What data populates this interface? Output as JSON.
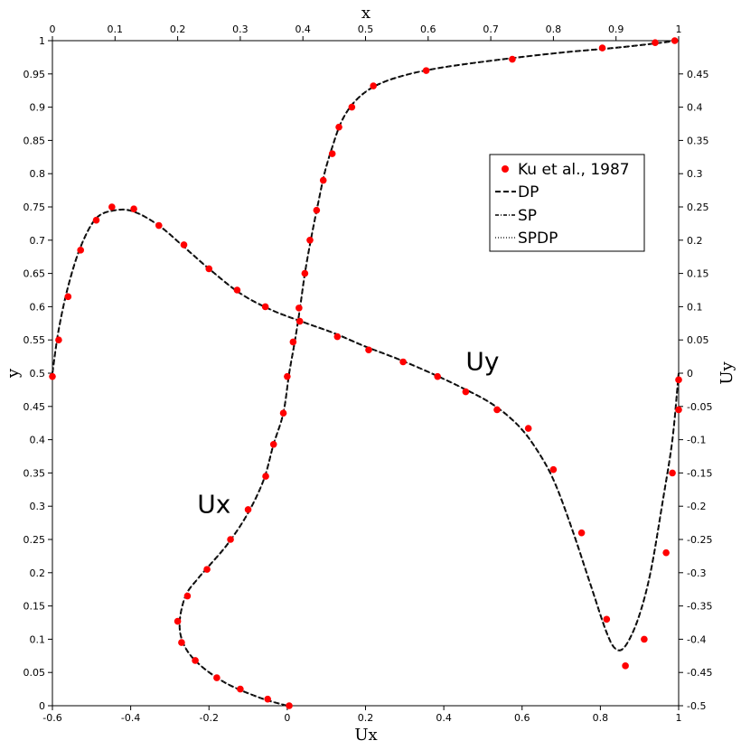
{
  "chart_data": {
    "type": "line",
    "axes": {
      "bottom": {
        "label": "Ux",
        "range": [
          -0.6,
          1.0
        ],
        "ticks": [
          "-0.6",
          "-0.4",
          "-0.2",
          "0",
          "0.2",
          "0.4",
          "0.6",
          "0.8",
          "1"
        ]
      },
      "left": {
        "label": "y",
        "range": [
          0,
          1
        ],
        "ticks": [
          "0",
          "0.05",
          "0.1",
          "0.15",
          "0.2",
          "0.25",
          "0.3",
          "0.35",
          "0.4",
          "0.45",
          "0.5",
          "0.55",
          "0.6",
          "0.65",
          "0.7",
          "0.75",
          "0.8",
          "0.85",
          "0.9",
          "0.95",
          "1"
        ]
      },
      "top": {
        "label": "x",
        "range": [
          0,
          1
        ],
        "ticks": [
          "0",
          "0.1",
          "0.2",
          "0.3",
          "0.4",
          "0.5",
          "0.6",
          "0.7",
          "0.8",
          "0.9",
          "1"
        ]
      },
      "right": {
        "label": "Uy",
        "range": [
          -0.5,
          0.5
        ],
        "ticks": [
          "-0.5",
          "-0.45",
          "-0.4",
          "-0.35",
          "-0.3",
          "-0.25",
          "-0.2",
          "-0.15",
          "-0.1",
          "-0.05",
          "0",
          "0.05",
          "0.1",
          "0.15",
          "0.2",
          "0.25",
          "0.3",
          "0.35",
          "0.4",
          "0.45"
        ]
      }
    },
    "annotations": [
      {
        "text": "Ux",
        "x": -0.23,
        "y": 0.29,
        "axes": "bottom-left"
      },
      {
        "text": "Uy",
        "x": 0.66,
        "y": 0.005,
        "axes": "top-right"
      }
    ],
    "legend": {
      "placement": "upper-right",
      "entries": [
        {
          "name": "Ku et al., 1987",
          "style": "red-dot"
        },
        {
          "name": "DP",
          "style": "dashed"
        },
        {
          "name": "SP",
          "style": "dash-dot"
        },
        {
          "name": "SPDP",
          "style": "dotted"
        }
      ]
    },
    "grid": false,
    "series": [
      {
        "name": "Ux",
        "axes": "bottom-left",
        "reference_points": [
          {
            "x": 0.005,
            "y": 0.0
          },
          {
            "x": -0.05,
            "y": 0.01
          },
          {
            "x": -0.12,
            "y": 0.025
          },
          {
            "x": -0.18,
            "y": 0.042
          },
          {
            "x": -0.235,
            "y": 0.068
          },
          {
            "x": -0.27,
            "y": 0.095
          },
          {
            "x": -0.28,
            "y": 0.127
          },
          {
            "x": -0.255,
            "y": 0.165
          },
          {
            "x": -0.205,
            "y": 0.205
          },
          {
            "x": -0.145,
            "y": 0.25
          },
          {
            "x": -0.1,
            "y": 0.295
          },
          {
            "x": -0.055,
            "y": 0.345
          },
          {
            "x": -0.035,
            "y": 0.393
          },
          {
            "x": -0.01,
            "y": 0.44
          },
          {
            "x": 0.0,
            "y": 0.495
          },
          {
            "x": 0.015,
            "y": 0.547
          },
          {
            "x": 0.03,
            "y": 0.598
          },
          {
            "x": 0.045,
            "y": 0.65
          },
          {
            "x": 0.058,
            "y": 0.7
          },
          {
            "x": 0.075,
            "y": 0.745
          },
          {
            "x": 0.092,
            "y": 0.79
          },
          {
            "x": 0.115,
            "y": 0.83
          },
          {
            "x": 0.132,
            "y": 0.87
          },
          {
            "x": 0.165,
            "y": 0.9
          },
          {
            "x": 0.22,
            "y": 0.932
          },
          {
            "x": 0.355,
            "y": 0.955
          },
          {
            "x": 0.575,
            "y": 0.972
          },
          {
            "x": 0.805,
            "y": 0.989
          },
          {
            "x": 0.94,
            "y": 0.997
          },
          {
            "x": 0.99,
            "y": 1.0
          }
        ],
        "curve": [
          {
            "x": 0.0,
            "y": 0.0
          },
          {
            "x": -0.07,
            "y": 0.012
          },
          {
            "x": -0.16,
            "y": 0.035
          },
          {
            "x": -0.23,
            "y": 0.065
          },
          {
            "x": -0.265,
            "y": 0.093
          },
          {
            "x": -0.275,
            "y": 0.125
          },
          {
            "x": -0.26,
            "y": 0.165
          },
          {
            "x": -0.23,
            "y": 0.19
          },
          {
            "x": -0.2,
            "y": 0.21
          },
          {
            "x": -0.15,
            "y": 0.245
          },
          {
            "x": -0.1,
            "y": 0.29
          },
          {
            "x": -0.06,
            "y": 0.34
          },
          {
            "x": -0.035,
            "y": 0.393
          },
          {
            "x": -0.01,
            "y": 0.44
          },
          {
            "x": 0.005,
            "y": 0.5
          },
          {
            "x": 0.02,
            "y": 0.55
          },
          {
            "x": 0.033,
            "y": 0.6
          },
          {
            "x": 0.045,
            "y": 0.65
          },
          {
            "x": 0.06,
            "y": 0.7
          },
          {
            "x": 0.077,
            "y": 0.75
          },
          {
            "x": 0.095,
            "y": 0.8
          },
          {
            "x": 0.115,
            "y": 0.84
          },
          {
            "x": 0.14,
            "y": 0.88
          },
          {
            "x": 0.175,
            "y": 0.91
          },
          {
            "x": 0.225,
            "y": 0.932
          },
          {
            "x": 0.3,
            "y": 0.948
          },
          {
            "x": 0.4,
            "y": 0.96
          },
          {
            "x": 0.55,
            "y": 0.972
          },
          {
            "x": 0.7,
            "y": 0.982
          },
          {
            "x": 0.85,
            "y": 0.99
          },
          {
            "x": 1.0,
            "y": 1.0
          }
        ]
      },
      {
        "name": "Uy",
        "axes": "top-right",
        "reference_points": [
          {
            "x": 0.0,
            "y": -0.005
          },
          {
            "x": 0.01,
            "y": 0.05
          },
          {
            "x": 0.025,
            "y": 0.115
          },
          {
            "x": 0.045,
            "y": 0.185
          },
          {
            "x": 0.07,
            "y": 0.23
          },
          {
            "x": 0.095,
            "y": 0.25
          },
          {
            "x": 0.13,
            "y": 0.247
          },
          {
            "x": 0.17,
            "y": 0.222
          },
          {
            "x": 0.21,
            "y": 0.193
          },
          {
            "x": 0.25,
            "y": 0.157
          },
          {
            "x": 0.295,
            "y": 0.125
          },
          {
            "x": 0.34,
            "y": 0.1
          },
          {
            "x": 0.395,
            "y": 0.078
          },
          {
            "x": 0.455,
            "y": 0.055
          },
          {
            "x": 0.505,
            "y": 0.035
          },
          {
            "x": 0.56,
            "y": 0.017
          },
          {
            "x": 0.615,
            "y": -0.005
          },
          {
            "x": 0.66,
            "y": -0.028
          },
          {
            "x": 0.71,
            "y": -0.055
          },
          {
            "x": 0.76,
            "y": -0.083
          },
          {
            "x": 0.8,
            "y": -0.145
          },
          {
            "x": 0.845,
            "y": -0.24
          },
          {
            "x": 0.885,
            "y": -0.37
          },
          {
            "x": 0.915,
            "y": -0.44
          },
          {
            "x": 0.945,
            "y": -0.4
          },
          {
            "x": 0.98,
            "y": -0.27
          },
          {
            "x": 0.99,
            "y": -0.15
          },
          {
            "x": 1.0,
            "y": -0.055
          },
          {
            "x": 1.0,
            "y": -0.01
          }
        ],
        "curve": [
          {
            "x": 0.0,
            "y": 0.0
          },
          {
            "x": 0.01,
            "y": 0.065
          },
          {
            "x": 0.025,
            "y": 0.13
          },
          {
            "x": 0.045,
            "y": 0.19
          },
          {
            "x": 0.07,
            "y": 0.233
          },
          {
            "x": 0.1,
            "y": 0.245
          },
          {
            "x": 0.13,
            "y": 0.243
          },
          {
            "x": 0.17,
            "y": 0.222
          },
          {
            "x": 0.21,
            "y": 0.19
          },
          {
            "x": 0.25,
            "y": 0.157
          },
          {
            "x": 0.3,
            "y": 0.12
          },
          {
            "x": 0.35,
            "y": 0.095
          },
          {
            "x": 0.4,
            "y": 0.077
          },
          {
            "x": 0.45,
            "y": 0.06
          },
          {
            "x": 0.5,
            "y": 0.04
          },
          {
            "x": 0.55,
            "y": 0.022
          },
          {
            "x": 0.6,
            "y": 0.002
          },
          {
            "x": 0.65,
            "y": -0.02
          },
          {
            "x": 0.7,
            "y": -0.045
          },
          {
            "x": 0.74,
            "y": -0.075
          },
          {
            "x": 0.77,
            "y": -0.11
          },
          {
            "x": 0.8,
            "y": -0.16
          },
          {
            "x": 0.83,
            "y": -0.235
          },
          {
            "x": 0.86,
            "y": -0.32
          },
          {
            "x": 0.885,
            "y": -0.39
          },
          {
            "x": 0.9,
            "y": -0.415
          },
          {
            "x": 0.915,
            "y": -0.41
          },
          {
            "x": 0.935,
            "y": -0.37
          },
          {
            "x": 0.955,
            "y": -0.3
          },
          {
            "x": 0.975,
            "y": -0.19
          },
          {
            "x": 0.99,
            "y": -0.1
          },
          {
            "x": 1.0,
            "y": 0.0
          }
        ]
      }
    ]
  }
}
